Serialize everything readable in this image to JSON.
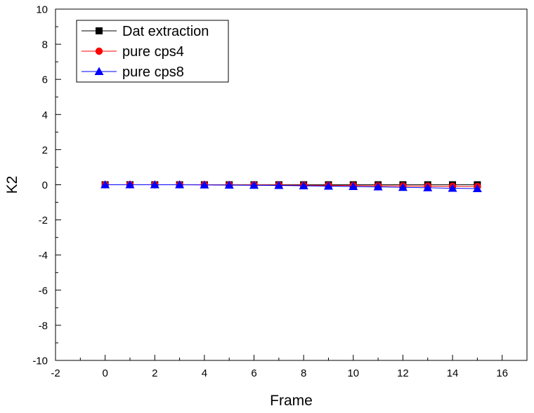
{
  "chart_data": {
    "type": "line",
    "title": "",
    "xlabel": "Frame",
    "ylabel": "K2",
    "xlim": [
      -2,
      17
    ],
    "ylim": [
      -10,
      10
    ],
    "xticks": [
      -2,
      0,
      2,
      4,
      6,
      8,
      10,
      12,
      14,
      16
    ],
    "yticks": [
      -10,
      -8,
      -6,
      -4,
      -2,
      0,
      2,
      4,
      6,
      8,
      10
    ],
    "grid": false,
    "legend_position": "top-left",
    "x": [
      0,
      1,
      2,
      3,
      4,
      5,
      6,
      7,
      8,
      9,
      10,
      11,
      12,
      13,
      14,
      15
    ],
    "series": [
      {
        "name": "Dat extraction",
        "color": "#000000",
        "marker": "square",
        "values": [
          0,
          0,
          0,
          0,
          0,
          0,
          0,
          0,
          0,
          0,
          0,
          0,
          0,
          0,
          0,
          0
        ]
      },
      {
        "name": "pure cps4",
        "color": "#ff0000",
        "marker": "circle",
        "values": [
          0,
          0,
          0,
          0,
          0,
          -0.01,
          -0.01,
          -0.02,
          -0.03,
          -0.04,
          -0.05,
          -0.06,
          -0.07,
          -0.08,
          -0.09,
          -0.1
        ]
      },
      {
        "name": "pure cps8",
        "color": "#0000ff",
        "marker": "triangle",
        "values": [
          0,
          0,
          0,
          0,
          -0.01,
          -0.02,
          -0.03,
          -0.04,
          -0.06,
          -0.08,
          -0.1,
          -0.12,
          -0.15,
          -0.17,
          -0.2,
          -0.22
        ]
      }
    ]
  }
}
